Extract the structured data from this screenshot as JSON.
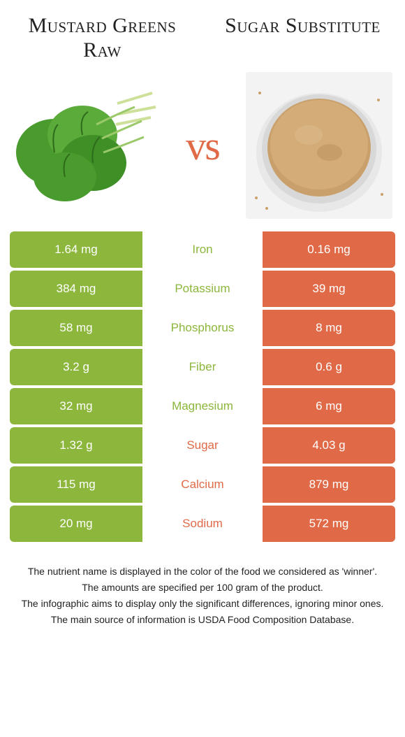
{
  "colors": {
    "green": "#8cb63c",
    "orange": "#e06a47",
    "background": "#ffffff",
    "text": "#222222",
    "white": "#ffffff"
  },
  "header": {
    "left_title": "Mustard Greens Raw",
    "right_title": "Sugar Substitute",
    "vs_text": "vs",
    "title_fontsize": 30
  },
  "rows": [
    {
      "nutrient": "Iron",
      "left": "1.64 mg",
      "right": "0.16 mg",
      "winner": "left"
    },
    {
      "nutrient": "Potassium",
      "left": "384 mg",
      "right": "39 mg",
      "winner": "left"
    },
    {
      "nutrient": "Phosphorus",
      "left": "58 mg",
      "right": "8 mg",
      "winner": "left"
    },
    {
      "nutrient": "Fiber",
      "left": "3.2 g",
      "right": "0.6 g",
      "winner": "left"
    },
    {
      "nutrient": "Magnesium",
      "left": "32 mg",
      "right": "6 mg",
      "winner": "left"
    },
    {
      "nutrient": "Sugar",
      "left": "1.32 g",
      "right": "4.03 g",
      "winner": "right"
    },
    {
      "nutrient": "Calcium",
      "left": "115 mg",
      "right": "879 mg",
      "winner": "right"
    },
    {
      "nutrient": "Sodium",
      "left": "20 mg",
      "right": "572 mg",
      "winner": "right"
    }
  ],
  "row_style": {
    "height": 52,
    "gap": 4,
    "value_fontsize": 17,
    "label_fontsize": 17,
    "border_radius": 6
  },
  "footer": {
    "line1": "The nutrient name is displayed in the color of the food we considered as 'winner'.",
    "line2": "The amounts are specified per 100 gram of the product.",
    "line3": "The infographic aims to display only the significant differences, ignoring minor ones.",
    "line4": "The main source of information is USDA Food Composition Database.",
    "fontsize": 14
  },
  "illustrations": {
    "left": "mustard-greens",
    "right": "sugar-substitute-bowl",
    "leaf_color": "#4a9b2e",
    "leaf_dark": "#2e6b1a",
    "stem_color": "#cde09a",
    "bowl_fill": "#c9a06b",
    "bowl_rim": "#d8d8d8",
    "bowl_bg": "#f3f3f3"
  }
}
